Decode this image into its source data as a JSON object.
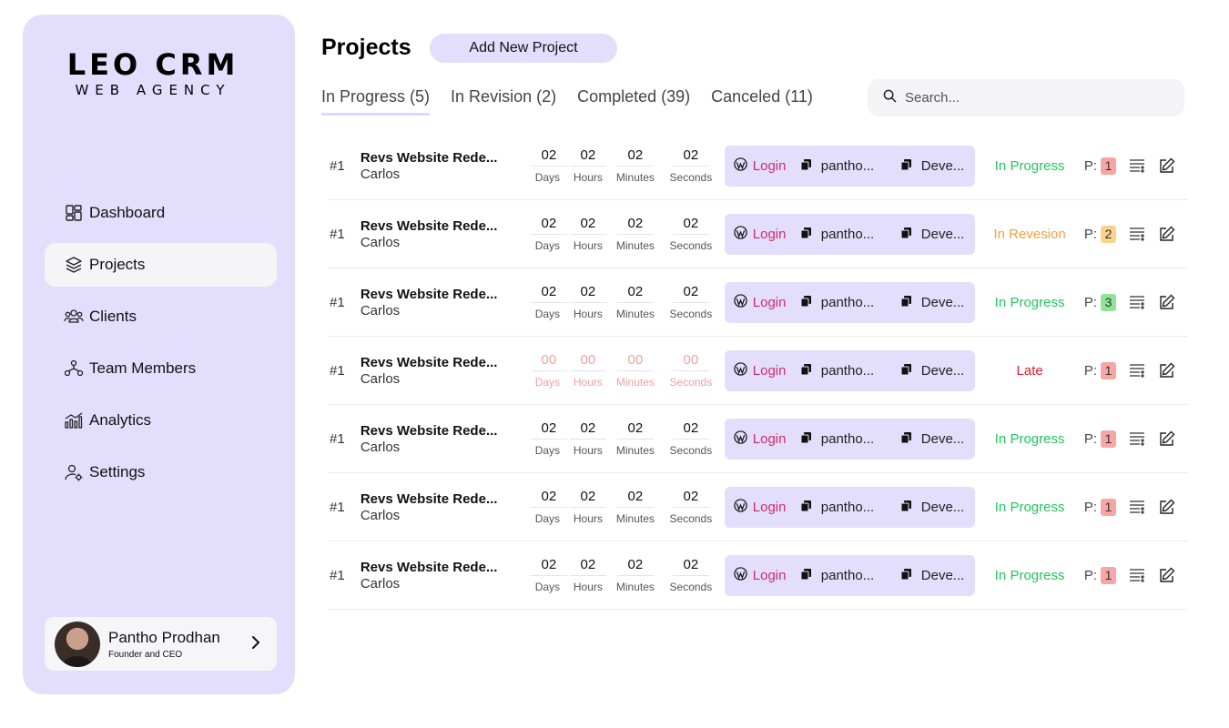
{
  "brand": {
    "name": "LEO CRM",
    "subtitle": "WEB AGENCY"
  },
  "nav": [
    {
      "label": "Dashboard",
      "icon": "dashboard-icon",
      "active": false
    },
    {
      "label": "Projects",
      "icon": "layers-icon",
      "active": true
    },
    {
      "label": "Clients",
      "icon": "clients-icon",
      "active": false
    },
    {
      "label": "Team Members",
      "icon": "team-icon",
      "active": false
    },
    {
      "label": "Analytics",
      "icon": "analytics-icon",
      "active": false
    },
    {
      "label": "Settings",
      "icon": "user-settings-icon",
      "active": false
    }
  ],
  "profile": {
    "name": "Pantho Prodhan",
    "role": "Founder and CEO"
  },
  "header": {
    "title": "Projects",
    "add_label": "Add New Project"
  },
  "tabs": [
    {
      "label": "In Progress (5)",
      "active": true
    },
    {
      "label": "In Revision (2)",
      "active": false
    },
    {
      "label": "Completed (39)",
      "active": false
    },
    {
      "label": "Canceled (11)",
      "active": false
    }
  ],
  "search": {
    "placeholder": "Search..."
  },
  "timer_labels": {
    "days": "Days",
    "hours": "Hours",
    "minutes": "Minutes",
    "seconds": "Seconds"
  },
  "link_labels": {
    "login": "Login",
    "user": "pantho...",
    "env": "Deve...",
    "priority_prefix": "P:"
  },
  "colors": {
    "accent": "#e3defc",
    "login": "#d12b6d",
    "status_in_progress": "#22c55e",
    "status_in_revision": "#f0a040",
    "status_late": "#e11d2e",
    "prio_red": "#f8a5a5",
    "prio_orange": "#fbd28a",
    "prio_green": "#8ee59a"
  },
  "rows": [
    {
      "num": "#1",
      "title": "Revs Website Rede...",
      "client": "Carlos",
      "timer": [
        "02",
        "02",
        "02",
        "02"
      ],
      "late": false,
      "status": "In Progress",
      "status_key": "in_progress",
      "priority": "1",
      "prio_color": "prio_red"
    },
    {
      "num": "#1",
      "title": "Revs Website Rede...",
      "client": "Carlos",
      "timer": [
        "02",
        "02",
        "02",
        "02"
      ],
      "late": false,
      "status": "In Revesion",
      "status_key": "in_revision",
      "priority": "2",
      "prio_color": "prio_orange"
    },
    {
      "num": "#1",
      "title": "Revs Website Rede...",
      "client": "Carlos",
      "timer": [
        "02",
        "02",
        "02",
        "02"
      ],
      "late": false,
      "status": "In Progress",
      "status_key": "in_progress",
      "priority": "3",
      "prio_color": "prio_green"
    },
    {
      "num": "#1",
      "title": "Revs Website Rede...",
      "client": "Carlos",
      "timer": [
        "00",
        "00",
        "00",
        "00"
      ],
      "late": true,
      "status": "Late",
      "status_key": "late",
      "priority": "1",
      "prio_color": "prio_red"
    },
    {
      "num": "#1",
      "title": "Revs Website Rede...",
      "client": "Carlos",
      "timer": [
        "02",
        "02",
        "02",
        "02"
      ],
      "late": false,
      "status": "In Progress",
      "status_key": "in_progress",
      "priority": "1",
      "prio_color": "prio_red"
    },
    {
      "num": "#1",
      "title": "Revs Website Rede...",
      "client": "Carlos",
      "timer": [
        "02",
        "02",
        "02",
        "02"
      ],
      "late": false,
      "status": "In Progress",
      "status_key": "in_progress",
      "priority": "1",
      "prio_color": "prio_red"
    },
    {
      "num": "#1",
      "title": "Revs Website Rede...",
      "client": "Carlos",
      "timer": [
        "02",
        "02",
        "02",
        "02"
      ],
      "late": false,
      "status": "In Progress",
      "status_key": "in_progress",
      "priority": "1",
      "prio_color": "prio_red"
    }
  ]
}
